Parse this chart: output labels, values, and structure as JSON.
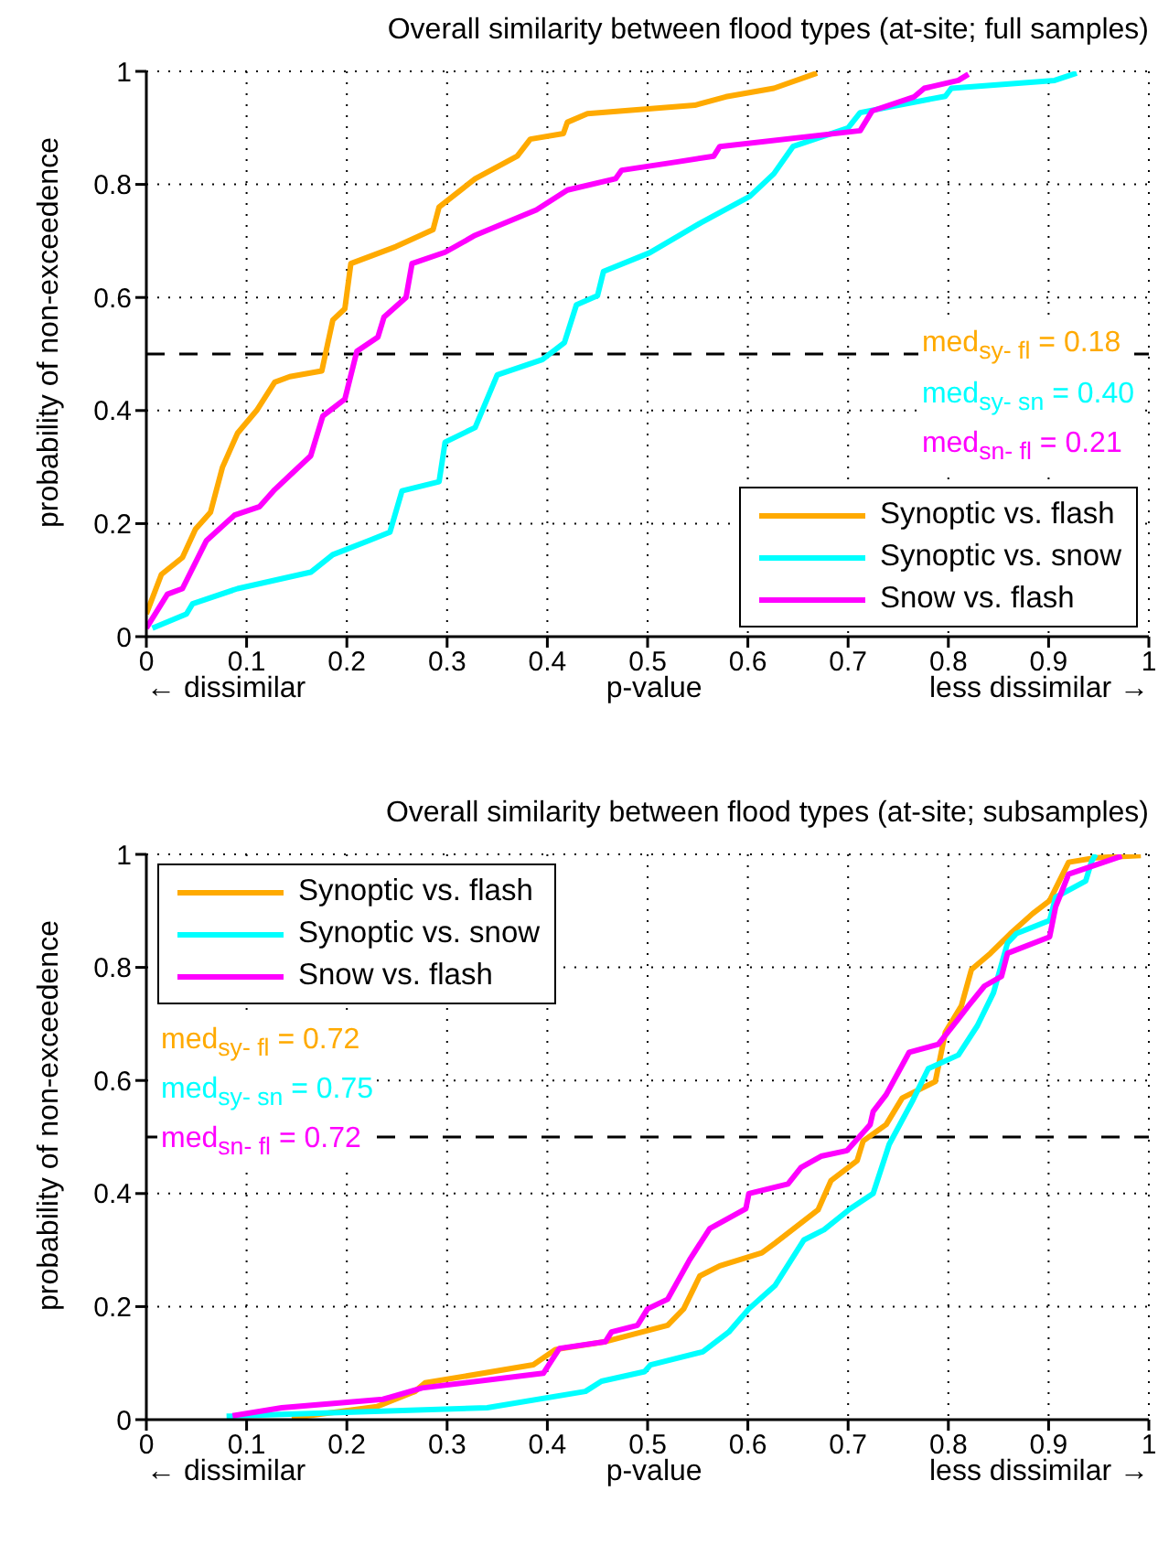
{
  "chart_data": [
    {
      "type": "line",
      "title": "Overall similarity between flood types (at-site; full samples)",
      "xlabel": "p-value",
      "ylabel": "probability of non-exceedence",
      "annotations": [
        "med$_{sy- fl}$ = 0.18",
        "med$_{sy- sn}$ = 0.40",
        "med$_{sn- fl}$ = 0.21",
        "← dissimilar",
        "less dissimilar →"
      ],
      "xlim": [
        0,
        1
      ],
      "ylim": [
        0,
        1
      ],
      "xticks": [
        0,
        0.1,
        0.2,
        0.3,
        0.4,
        0.5,
        0.6,
        0.7,
        0.8,
        0.9,
        1
      ],
      "yticks": [
        0,
        0.2,
        0.4,
        0.6,
        0.8,
        1
      ],
      "grid": true,
      "legend": "bottom right",
      "marker": "none",
      "line_style": "solid",
      "ref_lines": [
        {
          "axis": "y",
          "value": 0.5,
          "color": "#000000",
          "line_style": "dashed"
        }
      ],
      "series": [
        {
          "name": "Synoptic vs. flash",
          "color": "#ffaa00",
          "x": [
            0,
            0.015,
            0.036,
            0.049,
            0.064,
            0.076,
            0.091,
            0.11,
            0.128,
            0.143,
            0.175,
            0.186,
            0.198,
            0.204,
            0.249,
            0.286,
            0.292,
            0.328,
            0.37,
            0.383,
            0.416,
            0.42,
            0.44,
            0.547,
            0.578,
            0.626,
            0.669
          ],
          "values": [
            0.04,
            0.11,
            0.14,
            0.19,
            0.22,
            0.3,
            0.36,
            0.4,
            0.45,
            0.46,
            0.47,
            0.56,
            0.58,
            0.66,
            0.69,
            0.72,
            0.76,
            0.81,
            0.85,
            0.88,
            0.89,
            0.91,
            0.925,
            0.94,
            0.955,
            0.97,
            0.997
          ]
        },
        {
          "name": "Synoptic vs. snow",
          "color": "#00ffff",
          "x": [
            0.006,
            0.04,
            0.046,
            0.091,
            0.164,
            0.186,
            0.222,
            0.243,
            0.255,
            0.292,
            0.298,
            0.328,
            0.35,
            0.395,
            0.417,
            0.429,
            0.45,
            0.456,
            0.502,
            0.553,
            0.602,
            0.626,
            0.645,
            0.7,
            0.712,
            0.797,
            0.803,
            0.906,
            0.928
          ],
          "values": [
            0.015,
            0.04,
            0.058,
            0.085,
            0.114,
            0.145,
            0.17,
            0.185,
            0.258,
            0.274,
            0.344,
            0.37,
            0.463,
            0.49,
            0.52,
            0.587,
            0.603,
            0.646,
            0.679,
            0.732,
            0.779,
            0.819,
            0.867,
            0.9,
            0.927,
            0.956,
            0.97,
            0.984,
            0.997
          ]
        },
        {
          "name": "Snow vs. flash",
          "color": "#ff00ff",
          "x": [
            0,
            0.021,
            0.036,
            0.06,
            0.088,
            0.113,
            0.128,
            0.146,
            0.164,
            0.176,
            0.198,
            0.21,
            0.231,
            0.237,
            0.259,
            0.265,
            0.298,
            0.328,
            0.389,
            0.42,
            0.468,
            0.474,
            0.53,
            0.566,
            0.572,
            0.712,
            0.724,
            0.766,
            0.776,
            0.81,
            0.82
          ],
          "values": [
            0.015,
            0.075,
            0.085,
            0.17,
            0.215,
            0.23,
            0.26,
            0.29,
            0.32,
            0.39,
            0.42,
            0.505,
            0.53,
            0.565,
            0.6,
            0.66,
            0.68,
            0.71,
            0.755,
            0.79,
            0.81,
            0.825,
            0.84,
            0.85,
            0.867,
            0.895,
            0.93,
            0.955,
            0.97,
            0.984,
            0.995
          ]
        }
      ]
    },
    {
      "type": "line",
      "title": "Overall similarity between flood types (at-site; subsamples)",
      "xlabel": "p-value",
      "ylabel": "probability of non-exceedence",
      "annotations": [
        "med$_{sy- fl}$ = 0.72",
        "med$_{sy- sn}$ = 0.75",
        "med$_{sn- fl}$ = 0.72",
        "← dissimilar",
        "less dissimilar →"
      ],
      "xlim": [
        0,
        1
      ],
      "ylim": [
        0,
        1
      ],
      "xticks": [
        0,
        0.1,
        0.2,
        0.3,
        0.4,
        0.5,
        0.6,
        0.7,
        0.8,
        0.9,
        1
      ],
      "yticks": [
        0,
        0.2,
        0.4,
        0.6,
        0.8,
        1
      ],
      "grid": true,
      "legend": "top left",
      "marker": "none",
      "line_style": "solid",
      "ref_lines": [
        {
          "axis": "y",
          "value": 0.5,
          "color": "#000000",
          "line_style": "dashed"
        }
      ],
      "series": [
        {
          "name": "Synoptic vs. flash",
          "color": "#ffaa00",
          "x": [
            0.145,
            0.23,
            0.268,
            0.278,
            0.386,
            0.408,
            0.458,
            0.52,
            0.536,
            0.552,
            0.572,
            0.614,
            0.627,
            0.67,
            0.683,
            0.709,
            0.715,
            0.738,
            0.754,
            0.787,
            0.797,
            0.813,
            0.823,
            0.842,
            0.862,
            0.884,
            0.901,
            0.92,
            0.947,
            0.992
          ],
          "values": [
            0.003,
            0.023,
            0.05,
            0.065,
            0.097,
            0.124,
            0.138,
            0.167,
            0.196,
            0.254,
            0.272,
            0.295,
            0.312,
            0.371,
            0.423,
            0.458,
            0.493,
            0.522,
            0.569,
            0.598,
            0.685,
            0.732,
            0.796,
            0.825,
            0.86,
            0.895,
            0.918,
            0.986,
            0.994,
            0.998
          ]
        },
        {
          "name": "Synoptic vs. snow",
          "color": "#00ffff",
          "x": [
            0.08,
            0.34,
            0.438,
            0.454,
            0.497,
            0.503,
            0.555,
            0.581,
            0.601,
            0.627,
            0.656,
            0.676,
            0.702,
            0.725,
            0.741,
            0.764,
            0.78,
            0.81,
            0.829,
            0.845,
            0.859,
            0.868,
            0.901,
            0.907,
            0.937,
            0.943,
            0.947
          ],
          "values": [
            0.006,
            0.021,
            0.05,
            0.068,
            0.085,
            0.097,
            0.12,
            0.155,
            0.196,
            0.237,
            0.318,
            0.336,
            0.373,
            0.4,
            0.487,
            0.563,
            0.621,
            0.645,
            0.697,
            0.755,
            0.843,
            0.86,
            0.883,
            0.924,
            0.953,
            0.988,
            1
          ]
        },
        {
          "name": "Snow vs. flash",
          "color": "#ff00ff",
          "x": [
            0.086,
            0.135,
            0.236,
            0.275,
            0.396,
            0.412,
            0.458,
            0.464,
            0.49,
            0.5,
            0.52,
            0.542,
            0.562,
            0.598,
            0.601,
            0.64,
            0.653,
            0.673,
            0.699,
            0.722,
            0.725,
            0.738,
            0.761,
            0.79,
            0.81,
            0.82,
            0.836,
            0.853,
            0.859,
            0.901,
            0.907,
            0.92,
            0.973
          ],
          "values": [
            0.007,
            0.021,
            0.036,
            0.056,
            0.082,
            0.126,
            0.138,
            0.155,
            0.167,
            0.196,
            0.213,
            0.283,
            0.338,
            0.373,
            0.4,
            0.417,
            0.446,
            0.466,
            0.476,
            0.522,
            0.545,
            0.575,
            0.65,
            0.664,
            0.709,
            0.732,
            0.767,
            0.784,
            0.825,
            0.854,
            0.907,
            0.965,
            0.997
          ]
        }
      ]
    }
  ]
}
